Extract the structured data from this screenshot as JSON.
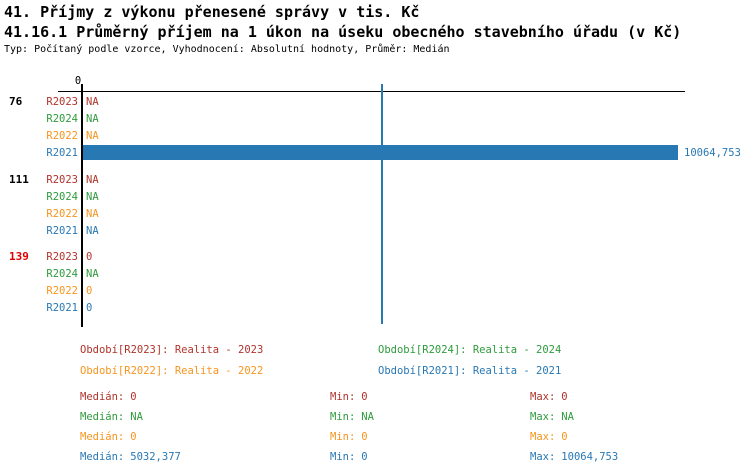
{
  "header": {
    "title_line1": "41. Příjmy z výkonu přenesené správy v tis. Kč",
    "title_line2": "41.16.1 Průměrný příjem na 1 úkon na úseku obecného stavebního úřadu (v Kč)",
    "meta_line": "Typ: Počítaný podle vzorce, Vyhodnocení: Absolutní hodnoty, Průměr: Medián"
  },
  "colors": {
    "series_r2023": "#b0332b",
    "series_r2024": "#2e9b3c",
    "series_r2022": "#f7941e",
    "series_r2021": "#2878b4",
    "bar_fill": "#2878b4",
    "median_line": "#2878b4",
    "axis": "#000000",
    "group_label_default": "#000000",
    "group_label_alert": "#e10000"
  },
  "chart_data": {
    "type": "bar",
    "orientation": "horizontal",
    "title": "41.16.1 Průměrný příjem na 1 úkon na úseku obecného stavebního úřadu (v Kč)",
    "value_unit": "Kč",
    "x_axis": {
      "zero_label": "0",
      "min": 0,
      "max": 10064.753,
      "gridlines": false
    },
    "median_marker_value": 5032.377,
    "series_order": [
      "R2023",
      "R2024",
      "R2022",
      "R2021"
    ],
    "groups": [
      {
        "label": "76",
        "alert": false,
        "rows": [
          {
            "series": "R2023",
            "display": "NA",
            "value": null
          },
          {
            "series": "R2024",
            "display": "NA",
            "value": null
          },
          {
            "series": "R2022",
            "display": "NA",
            "value": null
          },
          {
            "series": "R2021",
            "display": "10064,753",
            "value": 10064.753
          }
        ]
      },
      {
        "label": "111",
        "alert": false,
        "rows": [
          {
            "series": "R2023",
            "display": "NA",
            "value": null
          },
          {
            "series": "R2024",
            "display": "NA",
            "value": null
          },
          {
            "series": "R2022",
            "display": "NA",
            "value": null
          },
          {
            "series": "R2021",
            "display": "NA",
            "value": null
          }
        ]
      },
      {
        "label": "139",
        "alert": true,
        "rows": [
          {
            "series": "R2023",
            "display": "0",
            "value": 0
          },
          {
            "series": "R2024",
            "display": "NA",
            "value": null
          },
          {
            "series": "R2022",
            "display": "0",
            "value": 0
          },
          {
            "series": "R2021",
            "display": "0",
            "value": 0
          }
        ]
      }
    ]
  },
  "legend": {
    "items": [
      {
        "series": "R2023",
        "label": "Období[R2023]: Realita - 2023"
      },
      {
        "series": "R2024",
        "label": "Období[R2024]: Realita - 2024"
      },
      {
        "series": "R2022",
        "label": "Období[R2022]: Realita - 2022"
      },
      {
        "series": "R2021",
        "label": "Období[R2021]: Realita - 2021"
      }
    ]
  },
  "stats": {
    "rows": [
      {
        "series": "R2023",
        "median_label": "Medián:",
        "median": "0",
        "min_label": "Min:",
        "min": "0",
        "max_label": "Max:",
        "max": "0"
      },
      {
        "series": "R2024",
        "median_label": "Medián:",
        "median": "NA",
        "min_label": "Min:",
        "min": "NA",
        "max_label": "Max:",
        "max": "NA"
      },
      {
        "series": "R2022",
        "median_label": "Medián:",
        "median": "0",
        "min_label": "Min:",
        "min": "0",
        "max_label": "Max:",
        "max": "0"
      },
      {
        "series": "R2021",
        "median_label": "Medián:",
        "median": "5032,377",
        "min_label": "Min:",
        "min": "0",
        "max_label": "Max:",
        "max": "10064,753"
      }
    ]
  }
}
